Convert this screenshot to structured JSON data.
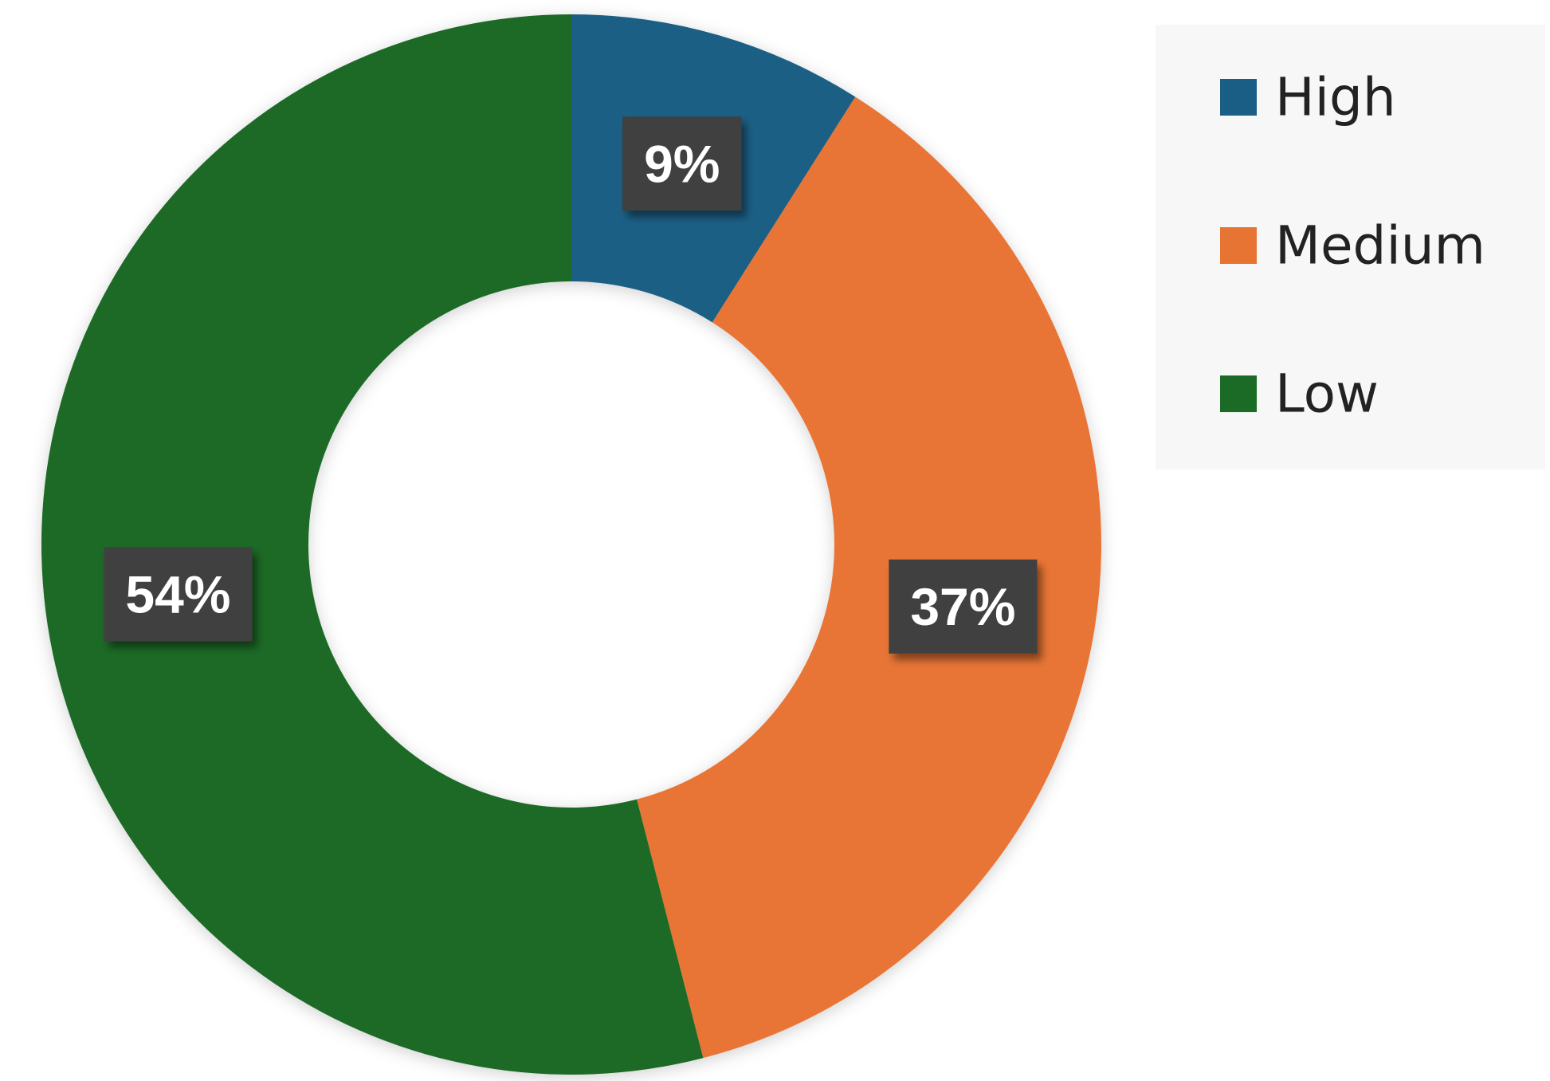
{
  "chart_data": {
    "type": "donut",
    "categories": [
      "High",
      "Medium",
      "Low"
    ],
    "values": [
      9,
      37,
      54
    ],
    "value_labels": [
      "9%",
      "37%",
      "54%"
    ],
    "colors": [
      "#1a5e85",
      "#e87434",
      "#1b6b26"
    ],
    "legend": "top-right"
  }
}
